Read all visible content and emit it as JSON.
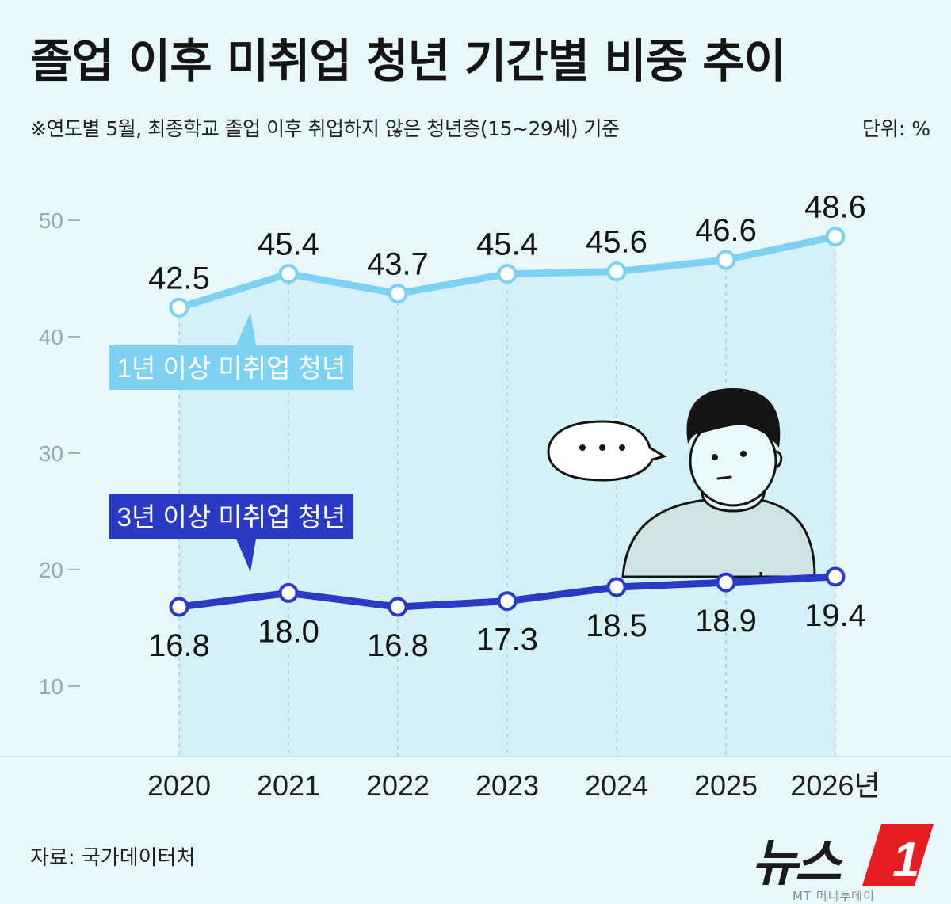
{
  "header": {
    "title": "졸업 이후 미취업 청년 기간별 비중 추이",
    "subtitle": "※연도별 5월, 최종학교 졸업 이후 취업하지 않은 청년층(15~29세) 기준",
    "unit": "단위: %"
  },
  "footer": {
    "source": "자료: 국가데이터처",
    "logo_text": "뉴스",
    "logo_mark": "1",
    "logo_sub": "MT 머니투데이"
  },
  "colors": {
    "series1": "#7fd1f2",
    "series2": "#2b3ac4",
    "background": "#e6f8fb",
    "area": "#d5f1f7"
  },
  "chart_data": {
    "type": "line",
    "categories": [
      "2020",
      "2021",
      "2022",
      "2023",
      "2024",
      "2025",
      "2026년"
    ],
    "ylim": [
      10,
      50
    ],
    "yticks": [
      10,
      20,
      30,
      40,
      50
    ],
    "grid": false,
    "series": [
      {
        "name": "1년 이상 미취업 청년",
        "values": [
          42.5,
          45.4,
          43.7,
          45.4,
          45.6,
          46.6,
          48.6
        ],
        "labels": [
          "42.5",
          "45.4",
          "43.7",
          "45.4",
          "45.6",
          "46.6",
          "48.6"
        ]
      },
      {
        "name": "3년 이상 미취업 청년",
        "values": [
          16.8,
          18.0,
          16.8,
          17.3,
          18.5,
          18.9,
          19.4
        ],
        "labels": [
          "16.8",
          "18.0",
          "16.8",
          "17.3",
          "18.5",
          "18.9",
          "19.4"
        ]
      }
    ],
    "illustration": {
      "speech_bubble": "...",
      "character": "person-icon"
    }
  }
}
